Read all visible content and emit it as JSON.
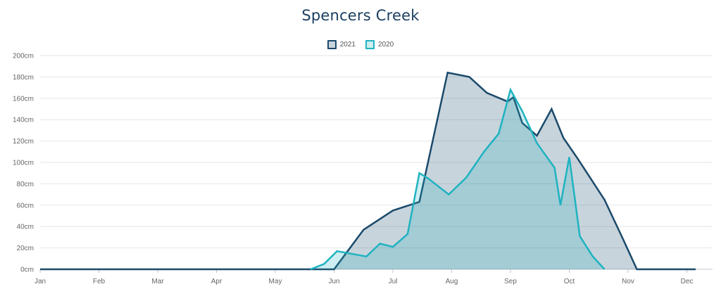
{
  "chart_data": {
    "type": "area",
    "title": "Spencers Creek",
    "x_tick_labels": [
      "Jan",
      "Feb",
      "Mar",
      "Apr",
      "May",
      "Jun",
      "Jul",
      "Aug",
      "Sep",
      "Oct",
      "Nov",
      "Dec"
    ],
    "y_tick_labels": [
      "0cm",
      "20cm",
      "40cm",
      "60cm",
      "80cm",
      "100cm",
      "120cm",
      "140cm",
      "160cm",
      "180cm",
      "200cm"
    ],
    "y_unit": "cm",
    "ylim": [
      0,
      200
    ],
    "xlim_months": [
      1,
      12.15
    ],
    "grid": true,
    "legend_position": "top-center",
    "series": [
      {
        "name": "2021",
        "color": "#1b4a6b",
        "fill": "rgba(27,74,107,0.24)",
        "points": [
          [
            1.0,
            0
          ],
          [
            6.0,
            0
          ],
          [
            6.5,
            37
          ],
          [
            7.0,
            55
          ],
          [
            7.45,
            63
          ],
          [
            7.93,
            184
          ],
          [
            8.3,
            180
          ],
          [
            8.6,
            165
          ],
          [
            8.95,
            157
          ],
          [
            9.05,
            161
          ],
          [
            9.2,
            137
          ],
          [
            9.45,
            125
          ],
          [
            9.7,
            150
          ],
          [
            9.9,
            123
          ],
          [
            10.15,
            103
          ],
          [
            10.6,
            65
          ],
          [
            10.9,
            30
          ],
          [
            11.15,
            0
          ],
          [
            12.15,
            0
          ]
        ]
      },
      {
        "name": "2020",
        "color": "#1fb3c0",
        "fill": "rgba(31,179,192,0.22)",
        "points": [
          [
            5.6,
            0
          ],
          [
            5.83,
            5
          ],
          [
            6.05,
            17
          ],
          [
            6.55,
            12
          ],
          [
            6.78,
            24
          ],
          [
            7.0,
            21
          ],
          [
            7.25,
            33
          ],
          [
            7.45,
            90
          ],
          [
            7.6,
            85
          ],
          [
            7.95,
            70
          ],
          [
            8.25,
            86
          ],
          [
            8.55,
            110
          ],
          [
            8.8,
            127
          ],
          [
            9.0,
            168
          ],
          [
            9.2,
            148
          ],
          [
            9.45,
            118
          ],
          [
            9.75,
            95
          ],
          [
            9.85,
            60
          ],
          [
            10.0,
            105
          ],
          [
            10.18,
            31
          ],
          [
            10.4,
            12
          ],
          [
            10.6,
            0
          ]
        ]
      }
    ]
  }
}
